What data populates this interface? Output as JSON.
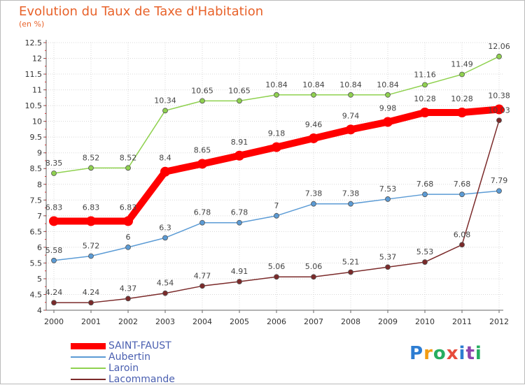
{
  "header": {
    "title": "Evolution du Taux de Taxe d'Habitation",
    "subtitle": "(en %)"
  },
  "logo": {
    "text": "Proxiti"
  },
  "chart_data": {
    "type": "line",
    "title": "Evolution du Taux de Taxe d'Habitation",
    "subtitle": "(en %)",
    "xlabel": "",
    "ylabel": "",
    "x": [
      "2000",
      "2001",
      "2002",
      "2003",
      "2004",
      "2005",
      "2006",
      "2007",
      "2008",
      "2009",
      "2010",
      "2011",
      "2012"
    ],
    "ylim": [
      4,
      12.5
    ],
    "yticks": [
      "4",
      "4.5",
      "5",
      "5.5",
      "6",
      "6.5",
      "7",
      "7.5",
      "8",
      "8.5",
      "9",
      "9.5",
      "10",
      "10.5",
      "11",
      "11.5",
      "12",
      "12.5"
    ],
    "grid": true,
    "legend_position": "bottom-left",
    "series": [
      {
        "name": "SAINT-FAUST",
        "color": "#ff0000",
        "values": [
          6.83,
          6.83,
          6.83,
          8.4,
          8.65,
          8.91,
          9.18,
          9.46,
          9.74,
          9.98,
          10.28,
          10.28,
          10.38
        ],
        "labels": [
          "6.83",
          "6.83",
          "6.83",
          "8.4",
          "8.65",
          "8.91",
          "9.18",
          "9.46",
          "9.74",
          "9.98",
          "10.28",
          "10.28",
          "10.38"
        ]
      },
      {
        "name": "Aubertin",
        "color": "#5b9bd5",
        "values": [
          5.58,
          5.72,
          6,
          6.3,
          6.78,
          6.78,
          7,
          7.38,
          7.38,
          7.53,
          7.68,
          7.68,
          7.79
        ],
        "labels": [
          "5.58",
          "5.72",
          "6",
          "6.3",
          "6.78",
          "6.78",
          "7",
          "7.38",
          "7.38",
          "7.53",
          "7.68",
          "7.68",
          "7.79"
        ]
      },
      {
        "name": "Laroin",
        "color": "#8fd14f",
        "values": [
          8.35,
          8.52,
          8.52,
          10.34,
          10.65,
          10.65,
          10.84,
          10.84,
          10.84,
          10.84,
          11.16,
          11.49,
          12.06
        ],
        "labels": [
          "8.35",
          "8.52",
          "8.52",
          "10.34",
          "10.65",
          "10.65",
          "10.84",
          "10.84",
          "10.84",
          "10.84",
          "11.16",
          "11.49",
          "12.06"
        ]
      },
      {
        "name": "Lacommande",
        "color": "#7b2a2a",
        "values": [
          4.24,
          4.24,
          4.37,
          4.54,
          4.77,
          4.91,
          5.06,
          5.06,
          5.21,
          5.37,
          5.53,
          6.08,
          10.03
        ],
        "labels": [
          "4.24",
          "4.24",
          "4.37",
          "4.54",
          "4.77",
          "4.91",
          "5.06",
          "5.06",
          "5.21",
          "5.37",
          "5.53",
          "6.08",
          "10.03"
        ]
      }
    ]
  }
}
